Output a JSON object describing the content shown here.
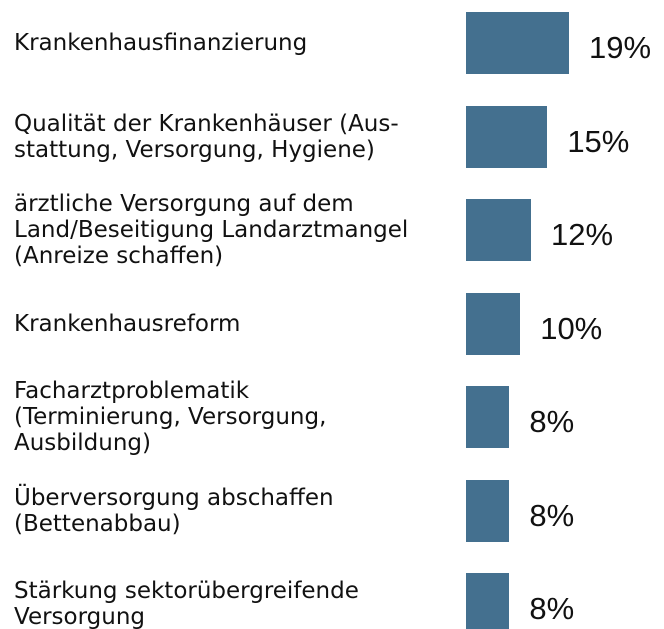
{
  "chart_data": {
    "type": "bar",
    "orientation": "horizontal",
    "categories": [
      "Krankenhausfinanzierung",
      "Qualität der Krankenhäuser (Aus-\nstattung, Versorgung, Hygiene)",
      "ärztliche Versorgung auf dem\nLand/Beseitigung Landarztmangel\n(Anreize schaffen)",
      "Krankenhausreform",
      "Facharztproblematik\n(Terminierung, Versorgung,\nAusbildung)",
      "Überversorgung abschaffen\n(Bettenabbau)",
      "Stärkung sektorübergreifende\nVersorgung"
    ],
    "values": [
      19,
      15,
      12,
      10,
      8,
      8,
      8
    ],
    "value_labels": [
      "19%",
      "15%",
      "12%",
      "10%",
      "8%",
      "8%",
      "8%"
    ],
    "color": "#44708f"
  }
}
